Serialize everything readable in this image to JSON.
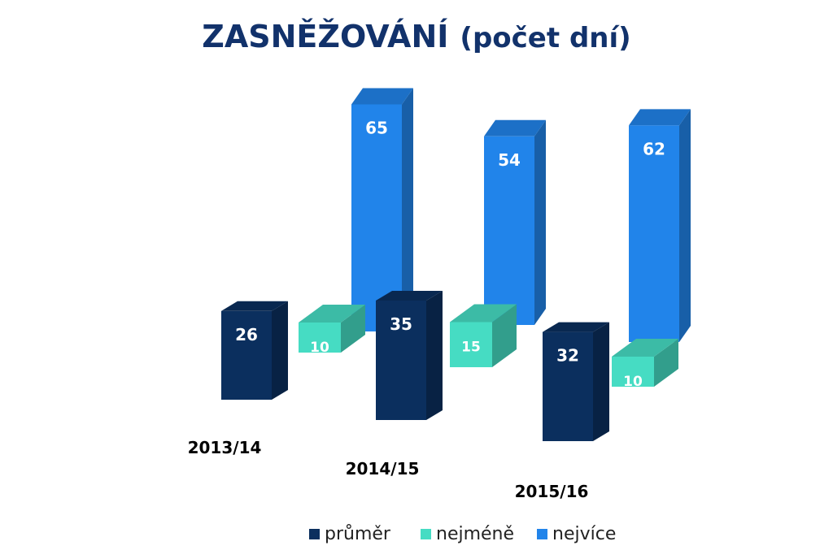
{
  "chart_data": {
    "type": "bar",
    "title": "ZASNĚŽOVÁNÍ",
    "subtitle": "(počet dní)",
    "categories": [
      "2013/14",
      "2014/15",
      "2015/16"
    ],
    "series": [
      {
        "name": "průměr",
        "values": [
          26,
          35,
          32
        ]
      },
      {
        "name": "nejméně",
        "values": [
          10,
          15,
          10
        ]
      },
      {
        "name": "nejvíce",
        "values": [
          65,
          54,
          62
        ]
      }
    ],
    "colors": [
      "#0b2f5e",
      "#46dcc3",
      "#2184ea"
    ],
    "legend_position": "bottom",
    "grid": false
  }
}
